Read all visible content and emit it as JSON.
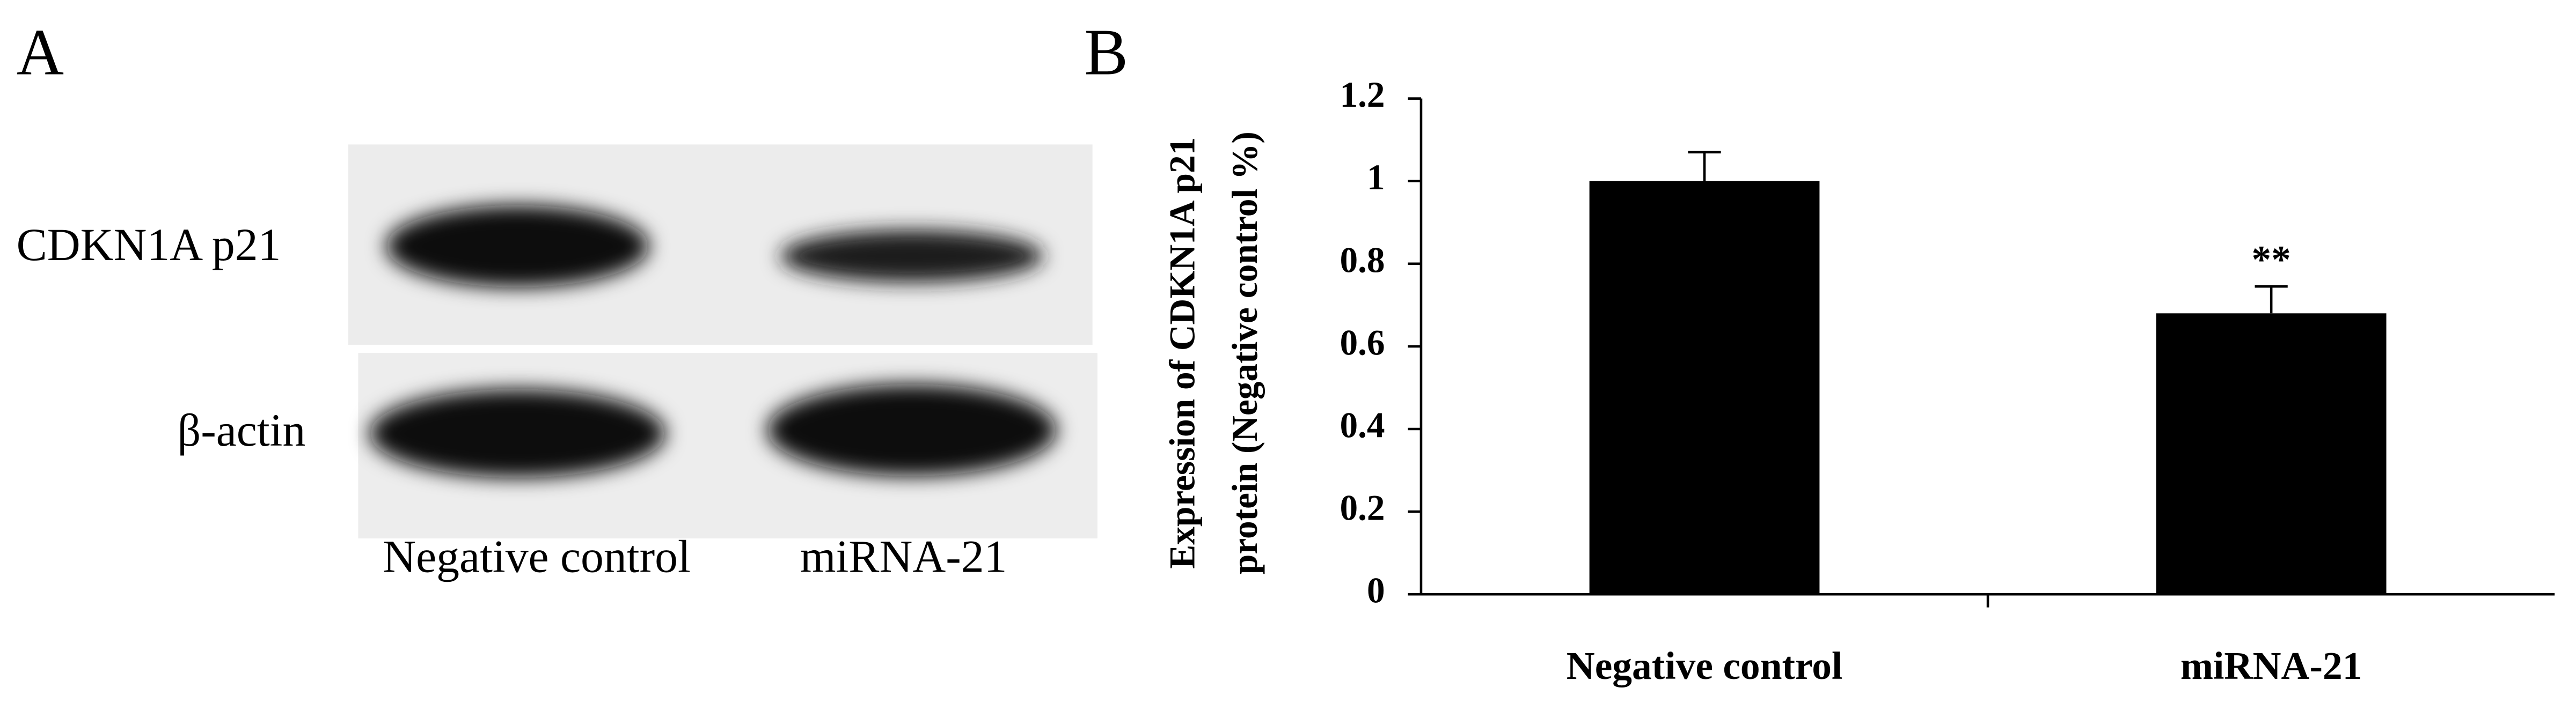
{
  "panel_a": {
    "label": "A",
    "rows": [
      "CDKN1A p21",
      "β-actin"
    ],
    "lanes": [
      "Negative control",
      "miRNA-21"
    ]
  },
  "chart_data": {
    "type": "bar",
    "panel_label": "B",
    "y_label": [
      "Expression of CDKN1A p21",
      "protein (Negative control %)"
    ],
    "categories": [
      "Negative control",
      "miRNA-21"
    ],
    "values": [
      1,
      0.68
    ],
    "errors": [
      0.07,
      0.065
    ],
    "color": "#000000",
    "annotations": [
      null,
      "**"
    ],
    "ylim": [
      0,
      1.2
    ],
    "yticks": [
      0,
      0.2,
      0.4,
      0.6,
      0.8,
      1,
      1.2
    ]
  }
}
